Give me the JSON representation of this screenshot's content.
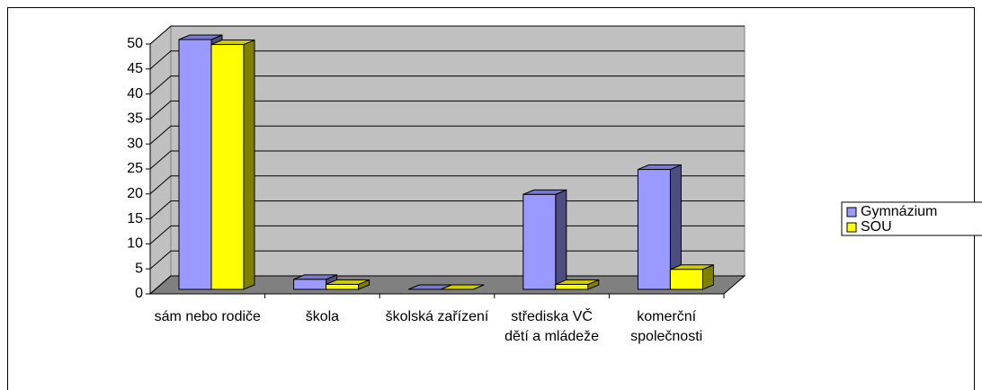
{
  "chart_data": {
    "type": "bar3d",
    "categories": [
      "sám nebo rodiče",
      "škola",
      "školská zařízení",
      "střediska VČ dětí a mládeže",
      "komerční společnosti"
    ],
    "series": [
      {
        "name": "Gymnázium",
        "color": "#9999ff",
        "values": [
          50,
          2,
          0,
          19,
          24
        ]
      },
      {
        "name": "SOU",
        "color": "#ffff00",
        "values": [
          49,
          1,
          0,
          1,
          4
        ]
      }
    ],
    "ylim": [
      0,
      50
    ],
    "yticks": [
      0,
      5,
      10,
      15,
      20,
      25,
      30,
      35,
      40,
      45,
      50
    ],
    "grid": true,
    "legend": "right"
  }
}
